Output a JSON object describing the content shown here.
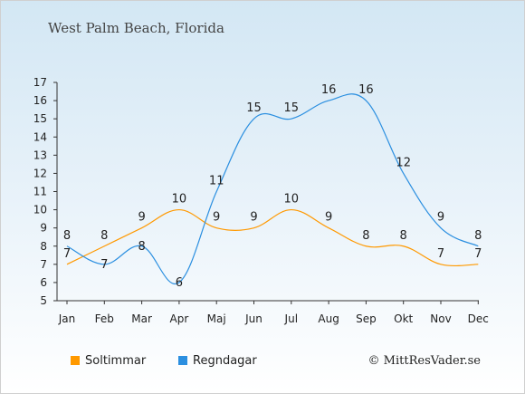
{
  "chart_data": {
    "type": "line",
    "title": "West Palm Beach, Florida",
    "categories": [
      "Jan",
      "Feb",
      "Mar",
      "Apr",
      "Maj",
      "Jun",
      "Jul",
      "Aug",
      "Sep",
      "Okt",
      "Nov",
      "Dec"
    ],
    "series": [
      {
        "name": "Soltimmar",
        "color": "#ff9900",
        "values": [
          7,
          8,
          9,
          10,
          9,
          9,
          10,
          9,
          8,
          8,
          7,
          7
        ]
      },
      {
        "name": "Regndagar",
        "color": "#2b8fe0",
        "values": [
          8,
          7,
          8,
          6,
          11,
          15,
          15,
          16,
          16,
          12,
          9,
          8
        ]
      }
    ],
    "ylim": [
      5,
      17
    ],
    "yticks": [
      5,
      6,
      7,
      8,
      9,
      10,
      11,
      12,
      13,
      14,
      15,
      16,
      17
    ],
    "grid": false
  },
  "footer": {
    "copyright": "© MittResVader.se"
  }
}
